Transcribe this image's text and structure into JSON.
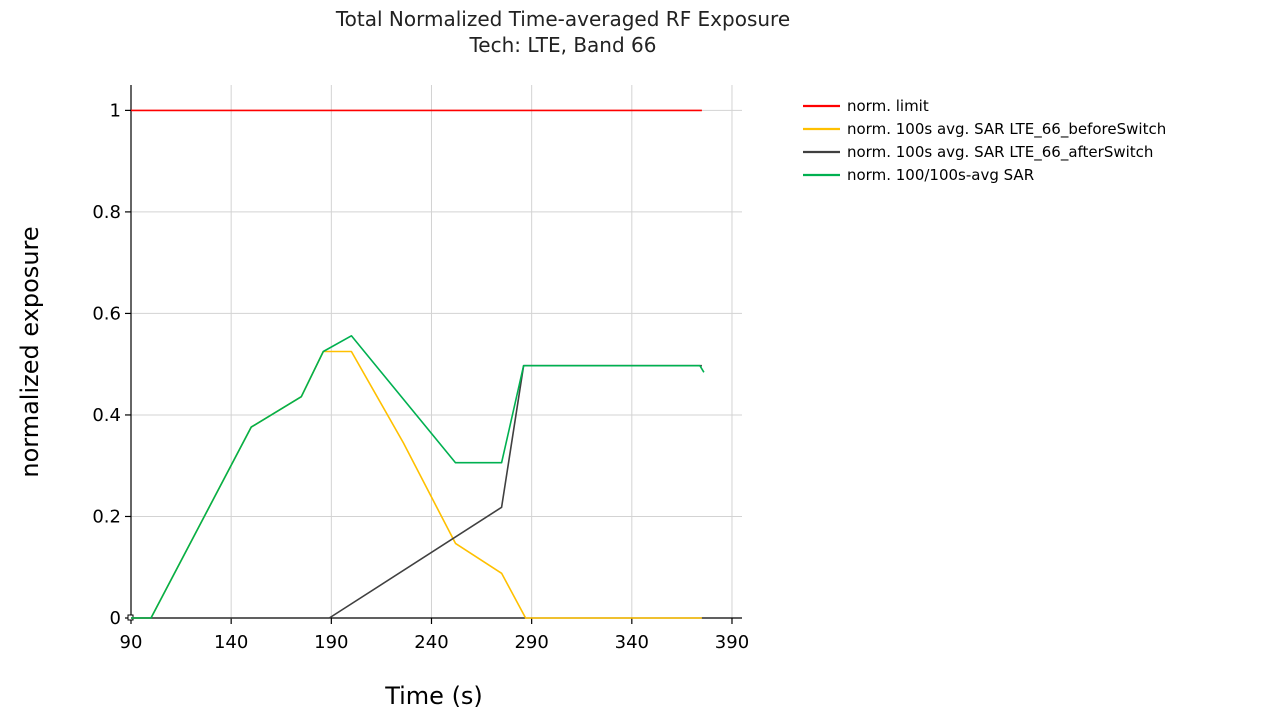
{
  "chart_data": {
    "type": "line",
    "title": "Total Normalized Time-averaged RF Exposure",
    "subtitle": "Tech: LTE, Band 66",
    "xlabel": "Time (s)",
    "ylabel": "normalized exposure",
    "xlim": [
      90,
      395
    ],
    "ylim": [
      0,
      1.05
    ],
    "x_ticks": [
      90,
      140,
      190,
      240,
      290,
      340,
      390
    ],
    "y_ticks": [
      0,
      0.2,
      0.4,
      0.6,
      0.8,
      1
    ],
    "y_tick_labels": [
      "0",
      "0.2",
      "0.4",
      "0.6",
      "0.8",
      "1"
    ],
    "grid": true,
    "legend_position": "top-right, outside plot",
    "series": [
      {
        "name": "norm. limit",
        "color": "#ff0000",
        "x": [
          90,
          375
        ],
        "y": [
          1,
          1
        ]
      },
      {
        "name": "norm. 100s avg. SAR LTE_66_beforeSwitch",
        "color": "#ffc000",
        "x": [
          90,
          100,
          150,
          175,
          186,
          200,
          226,
          252,
          275,
          287,
          375
        ],
        "y": [
          0,
          0,
          0.376,
          0.436,
          0.525,
          0.525,
          0.345,
          0.147,
          0.088,
          0,
          0
        ]
      },
      {
        "name": "norm. 100s avg. SAR LTE_66_afterSwitch",
        "color": "#404040",
        "x": [
          90,
          189,
          275,
          286,
          375
        ],
        "y": [
          0,
          0,
          0.218,
          0.497,
          0.497
        ]
      },
      {
        "name": "norm. 100/100s-avg SAR",
        "color": "#00b050",
        "x": [
          90,
          100,
          150,
          175,
          186,
          200,
          252,
          275,
          286,
          374,
          376
        ],
        "y": [
          0,
          0,
          0.376,
          0.436,
          0.525,
          0.556,
          0.306,
          0.306,
          0.497,
          0.497,
          0.484
        ]
      }
    ]
  }
}
